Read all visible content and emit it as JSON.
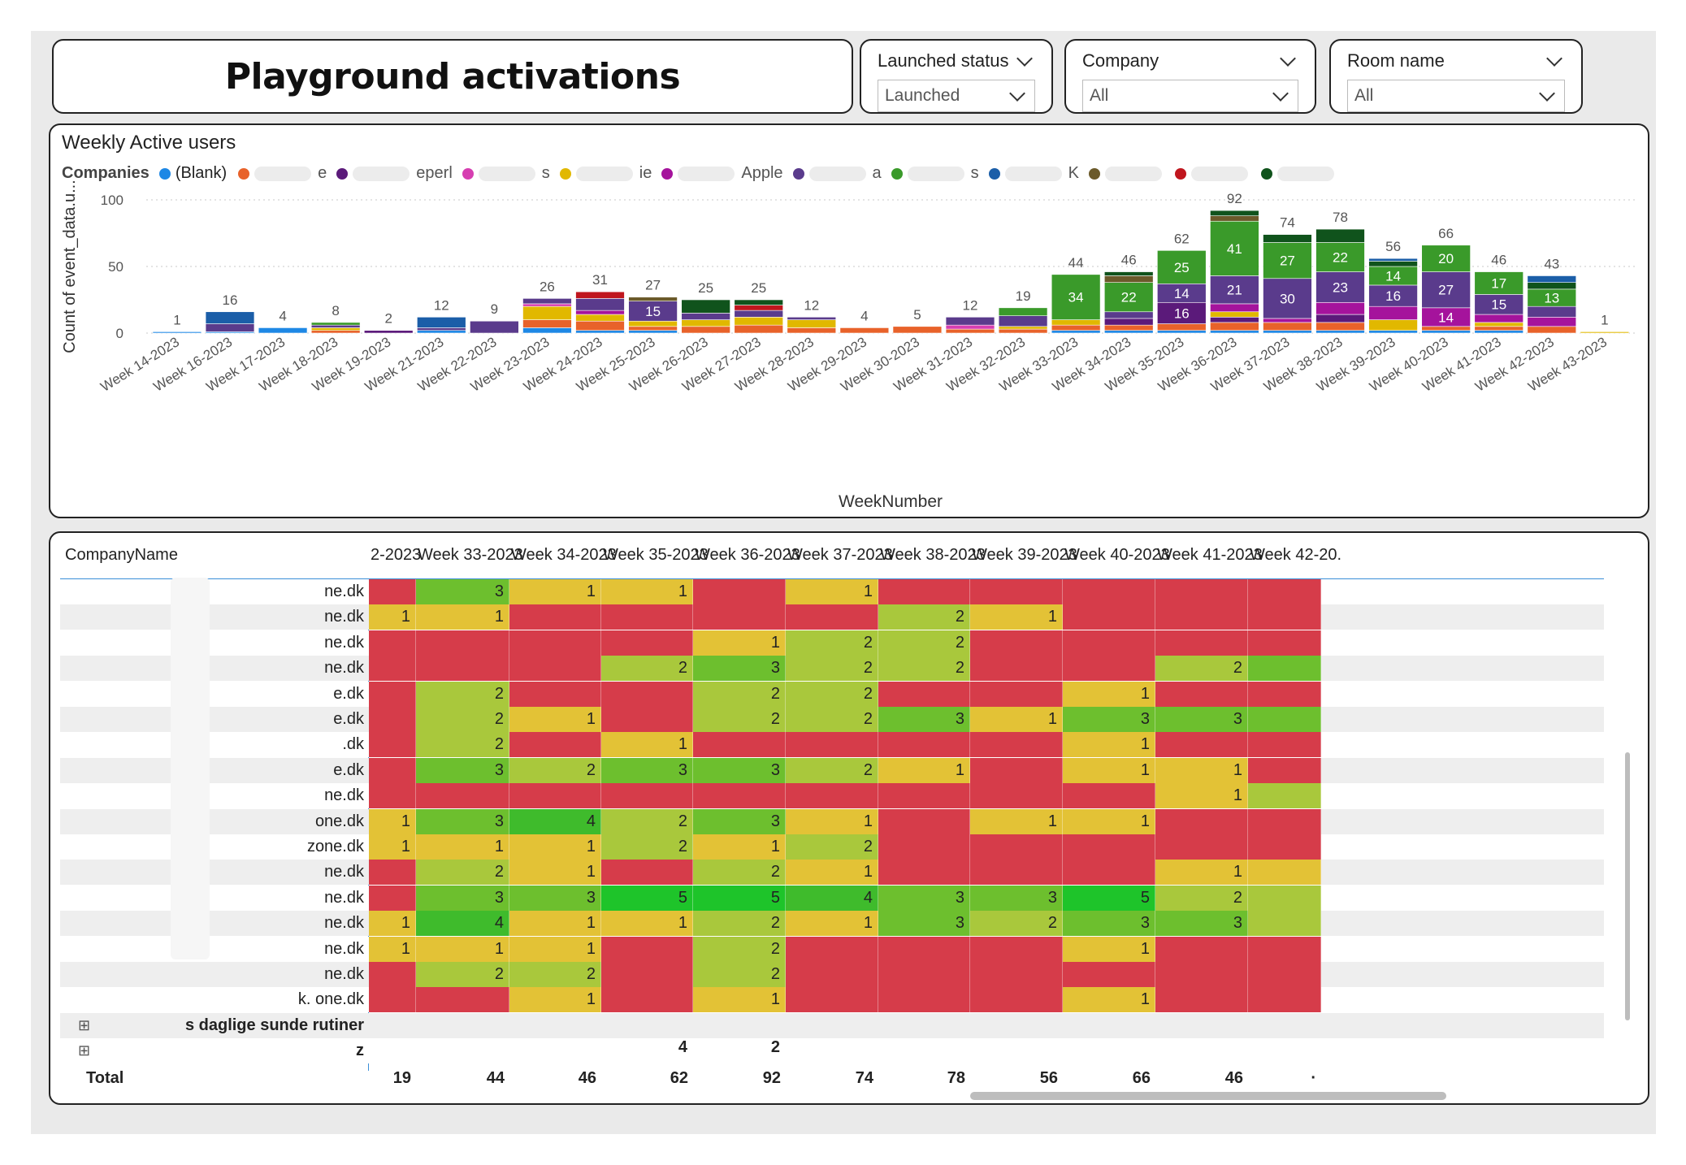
{
  "page": {
    "title": "Playground activations"
  },
  "slicers": [
    {
      "label": "Launched status",
      "value": "Launched"
    },
    {
      "label": "Company",
      "value": "All"
    },
    {
      "label": "Room name",
      "value": "All"
    }
  ],
  "chart": {
    "title": "Weekly Active users",
    "legend_title": "Companies",
    "legend_first": "(Blank)",
    "legend_fragments": [
      "e",
      "eperl",
      "s",
      "ie",
      "Apple",
      "a",
      "s",
      "K"
    ],
    "legend_colors": [
      "#1e88e5",
      "#e8622a",
      "#5b1a7a",
      "#d63eb1",
      "#e1b800",
      "#a5139c",
      "#5a3b8c",
      "#3a9a2a",
      "#1b5ea8",
      "#6b5a2a",
      "#c0161e",
      "#10531c"
    ]
  },
  "chart_data": {
    "type": "bar",
    "stacked": true,
    "title": "Weekly Active users",
    "xlabel": "WeekNumber",
    "ylabel": "Count of event_data.u...",
    "ylim": [
      0,
      100
    ],
    "yticks": [
      0,
      50,
      100
    ],
    "grid": true,
    "legend_position": "top",
    "categories": [
      "Week 14-2023",
      "Week 16-2023",
      "Week 17-2023",
      "Week 18-2023",
      "Week 19-2023",
      "Week 21-2023",
      "Week 22-2023",
      "Week 23-2023",
      "Week 24-2023",
      "Week 25-2023",
      "Week 26-2023",
      "Week 27-2023",
      "Week 28-2023",
      "Week 29-2023",
      "Week 30-2023",
      "Week 31-2023",
      "Week 32-2023",
      "Week 33-2023",
      "Week 34-2023",
      "Week 35-2023",
      "Week 36-2023",
      "Week 37-2023",
      "Week 38-2023",
      "Week 39-2023",
      "Week 40-2023",
      "Week 41-2023",
      "Week 42-2023",
      "Week 43-2023"
    ],
    "totals": [
      1,
      16,
      4,
      8,
      2,
      12,
      9,
      26,
      31,
      27,
      25,
      25,
      12,
      4,
      5,
      12,
      19,
      44,
      46,
      62,
      92,
      74,
      78,
      56,
      66,
      46,
      43,
      1
    ],
    "segments": [
      [
        {
          "c": "#1e88e5",
          "v": 1
        }
      ],
      [
        {
          "c": "#1e88e5",
          "v": 1
        },
        {
          "c": "#5a3b8c",
          "v": 6
        },
        {
          "c": "#1b5ea8",
          "v": 9
        }
      ],
      [
        {
          "c": "#1e88e5",
          "v": 4
        }
      ],
      [
        {
          "c": "#e8622a",
          "v": 2
        },
        {
          "c": "#e1b800",
          "v": 2
        },
        {
          "c": "#5a3b8c",
          "v": 2
        },
        {
          "c": "#3a9a2a",
          "v": 2
        }
      ],
      [
        {
          "c": "#5b1a7a",
          "v": 2
        }
      ],
      [
        {
          "c": "#1e88e5",
          "v": 2
        },
        {
          "c": "#5a3b8c",
          "v": 2
        },
        {
          "c": "#1b5ea8",
          "v": 8
        }
      ],
      [
        {
          "c": "#5a3b8c",
          "v": 9
        }
      ],
      [
        {
          "c": "#1e88e5",
          "v": 4
        },
        {
          "c": "#e8622a",
          "v": 6
        },
        {
          "c": "#e1b800",
          "v": 10
        },
        {
          "c": "#d63eb1",
          "v": 2
        },
        {
          "c": "#5a3b8c",
          "v": 4
        }
      ],
      [
        {
          "c": "#1e88e5",
          "v": 2
        },
        {
          "c": "#e8622a",
          "v": 7
        },
        {
          "c": "#e1b800",
          "v": 5
        },
        {
          "c": "#a5139c",
          "v": 3
        },
        {
          "c": "#5a3b8c",
          "v": 9
        },
        {
          "c": "#c0161e",
          "v": 5
        }
      ],
      [
        {
          "c": "#1e88e5",
          "v": 2
        },
        {
          "c": "#e8622a",
          "v": 3
        },
        {
          "c": "#e1b800",
          "v": 4
        },
        {
          "c": "#5a3b8c",
          "v": 15
        },
        {
          "c": "#6b5a2a",
          "v": 3
        }
      ],
      [
        {
          "c": "#e8622a",
          "v": 5
        },
        {
          "c": "#e1b800",
          "v": 5
        },
        {
          "c": "#5a3b8c",
          "v": 5
        },
        {
          "c": "#10531c",
          "v": 10
        }
      ],
      [
        {
          "c": "#e8622a",
          "v": 6
        },
        {
          "c": "#e1b800",
          "v": 6
        },
        {
          "c": "#5a3b8c",
          "v": 5
        },
        {
          "c": "#c0161e",
          "v": 4
        },
        {
          "c": "#10531c",
          "v": 4
        }
      ],
      [
        {
          "c": "#e8622a",
          "v": 4
        },
        {
          "c": "#e1b800",
          "v": 6
        },
        {
          "c": "#5a3b8c",
          "v": 2
        }
      ],
      [
        {
          "c": "#e8622a",
          "v": 4
        }
      ],
      [
        {
          "c": "#e8622a",
          "v": 5
        }
      ],
      [
        {
          "c": "#e8622a",
          "v": 3
        },
        {
          "c": "#d63eb1",
          "v": 3
        },
        {
          "c": "#5a3b8c",
          "v": 6
        }
      ],
      [
        {
          "c": "#e8622a",
          "v": 3
        },
        {
          "c": "#e1b800",
          "v": 2
        },
        {
          "c": "#5a3b8c",
          "v": 8
        },
        {
          "c": "#3a9a2a",
          "v": 6
        }
      ],
      [
        {
          "c": "#1e88e5",
          "v": 2
        },
        {
          "c": "#e8622a",
          "v": 4
        },
        {
          "c": "#e1b800",
          "v": 4
        },
        {
          "c": "#3a9a2a",
          "v": 34
        }
      ],
      [
        {
          "c": "#1e88e5",
          "v": 2
        },
        {
          "c": "#e8622a",
          "v": 4
        },
        {
          "c": "#5b1a7a",
          "v": 5
        },
        {
          "c": "#5a3b8c",
          "v": 5
        },
        {
          "c": "#3a9a2a",
          "v": 22
        },
        {
          "c": "#6b5a2a",
          "v": 5
        },
        {
          "c": "#10531c",
          "v": 3
        }
      ],
      [
        {
          "c": "#1e88e5",
          "v": 2
        },
        {
          "c": "#e8622a",
          "v": 5
        },
        {
          "c": "#5b1a7a",
          "v": 16
        },
        {
          "c": "#5a3b8c",
          "v": 14
        },
        {
          "c": "#3a9a2a",
          "v": 25
        }
      ],
      [
        {
          "c": "#1e88e5",
          "v": 2
        },
        {
          "c": "#e8622a",
          "v": 6
        },
        {
          "c": "#5b1a7a",
          "v": 4
        },
        {
          "c": "#e1b800",
          "v": 4
        },
        {
          "c": "#a5139c",
          "v": 6
        },
        {
          "c": "#5a3b8c",
          "v": 21
        },
        {
          "c": "#3a9a2a",
          "v": 41
        },
        {
          "c": "#6b5a2a",
          "v": 4
        },
        {
          "c": "#10531c",
          "v": 4
        }
      ],
      [
        {
          "c": "#1e88e5",
          "v": 2
        },
        {
          "c": "#e8622a",
          "v": 6
        },
        {
          "c": "#a5139c",
          "v": 3
        },
        {
          "c": "#5a3b8c",
          "v": 30
        },
        {
          "c": "#3a9a2a",
          "v": 27
        },
        {
          "c": "#10531c",
          "v": 6
        }
      ],
      [
        {
          "c": "#1e88e5",
          "v": 2
        },
        {
          "c": "#e8622a",
          "v": 6
        },
        {
          "c": "#5b1a7a",
          "v": 6
        },
        {
          "c": "#a5139c",
          "v": 9
        },
        {
          "c": "#5a3b8c",
          "v": 23
        },
        {
          "c": "#3a9a2a",
          "v": 22
        },
        {
          "c": "#10531c",
          "v": 10
        }
      ],
      [
        {
          "c": "#1e88e5",
          "v": 2
        },
        {
          "c": "#e1b800",
          "v": 8
        },
        {
          "c": "#a5139c",
          "v": 10
        },
        {
          "c": "#5a3b8c",
          "v": 16
        },
        {
          "c": "#3a9a2a",
          "v": 14
        },
        {
          "c": "#10531c",
          "v": 4
        },
        {
          "c": "#1b5ea8",
          "v": 2
        }
      ],
      [
        {
          "c": "#1e88e5",
          "v": 2
        },
        {
          "c": "#e8622a",
          "v": 3
        },
        {
          "c": "#a5139c",
          "v": 14
        },
        {
          "c": "#5a3b8c",
          "v": 27
        },
        {
          "c": "#3a9a2a",
          "v": 20
        }
      ],
      [
        {
          "c": "#1e88e5",
          "v": 2
        },
        {
          "c": "#e8622a",
          "v": 3
        },
        {
          "c": "#e1b800",
          "v": 3
        },
        {
          "c": "#a5139c",
          "v": 6
        },
        {
          "c": "#5a3b8c",
          "v": 15
        },
        {
          "c": "#3a9a2a",
          "v": 17
        }
      ],
      [
        {
          "c": "#e8622a",
          "v": 5
        },
        {
          "c": "#a5139c",
          "v": 7
        },
        {
          "c": "#5a3b8c",
          "v": 8
        },
        {
          "c": "#3a9a2a",
          "v": 13
        },
        {
          "c": "#10531c",
          "v": 5
        },
        {
          "c": "#1b5ea8",
          "v": 5
        }
      ],
      [
        {
          "c": "#e1b800",
          "v": 1
        }
      ]
    ],
    "segment_labels": [
      {
        "i": 9,
        "seg": 3,
        "label": "15"
      },
      {
        "i": 17,
        "seg": 3,
        "label": "34"
      },
      {
        "i": 18,
        "seg": 4,
        "label": "22"
      },
      {
        "i": 19,
        "seg": 2,
        "label": "16"
      },
      {
        "i": 19,
        "seg": 3,
        "label": "14"
      },
      {
        "i": 19,
        "seg": 4,
        "label": "25"
      },
      {
        "i": 20,
        "seg": 5,
        "label": "21"
      },
      {
        "i": 20,
        "seg": 6,
        "label": "41"
      },
      {
        "i": 21,
        "seg": 3,
        "label": "30"
      },
      {
        "i": 21,
        "seg": 4,
        "label": "27"
      },
      {
        "i": 22,
        "seg": 4,
        "label": "23"
      },
      {
        "i": 22,
        "seg": 5,
        "label": "22"
      },
      {
        "i": 23,
        "seg": 3,
        "label": "16"
      },
      {
        "i": 23,
        "seg": 4,
        "label": "14"
      },
      {
        "i": 24,
        "seg": 2,
        "label": "14"
      },
      {
        "i": 24,
        "seg": 3,
        "label": "27"
      },
      {
        "i": 24,
        "seg": 4,
        "label": "20"
      },
      {
        "i": 25,
        "seg": 4,
        "label": "15"
      },
      {
        "i": 25,
        "seg": 5,
        "label": "17"
      },
      {
        "i": 26,
        "seg": 3,
        "label": "13"
      }
    ]
  },
  "table": {
    "header_first": "CompanyName",
    "columns": [
      "2-2023",
      "Week 33-2023",
      "Week 34-2023",
      "Week 35-2023",
      "Week 36-2023",
      "Week 37-2023",
      "Week 38-2023",
      "Week 39-2023",
      "Week 40-2023",
      "Week 41-2023",
      "Week 42-20."
    ],
    "rows": [
      {
        "name": "ne.dk",
        "vals": [
          null,
          3,
          1,
          1,
          null,
          1,
          null,
          null,
          null,
          null,
          null
        ]
      },
      {
        "name": "ne.dk",
        "vals": [
          1,
          1,
          null,
          null,
          null,
          null,
          2,
          1,
          null,
          null,
          null
        ]
      },
      {
        "name": "ne.dk",
        "vals": [
          null,
          null,
          null,
          null,
          1,
          2,
          2,
          null,
          null,
          null,
          null
        ]
      },
      {
        "name": "ne.dk",
        "vals": [
          null,
          null,
          null,
          2,
          3,
          2,
          2,
          null,
          null,
          2,
          null
        ]
      },
      {
        "name": "e.dk",
        "vals": [
          null,
          2,
          null,
          null,
          2,
          2,
          null,
          null,
          1,
          null,
          null
        ]
      },
      {
        "name": "e.dk",
        "vals": [
          null,
          2,
          1,
          null,
          2,
          2,
          3,
          1,
          3,
          3,
          null
        ]
      },
      {
        "name": ".dk",
        "vals": [
          null,
          2,
          null,
          1,
          null,
          null,
          null,
          null,
          1,
          null,
          null
        ]
      },
      {
        "name": "e.dk",
        "vals": [
          null,
          3,
          2,
          3,
          3,
          2,
          1,
          null,
          1,
          1,
          null
        ]
      },
      {
        "name": "ne.dk",
        "vals": [
          null,
          null,
          null,
          null,
          null,
          null,
          null,
          null,
          null,
          1,
          null
        ]
      },
      {
        "name": "one.dk",
        "vals": [
          1,
          3,
          4,
          2,
          3,
          1,
          null,
          1,
          1,
          null,
          null
        ]
      },
      {
        "name": "zone.dk",
        "vals": [
          1,
          1,
          1,
          2,
          1,
          2,
          null,
          null,
          null,
          null,
          null
        ]
      },
      {
        "name": "ne.dk",
        "vals": [
          null,
          2,
          1,
          null,
          2,
          1,
          null,
          null,
          null,
          1,
          null
        ]
      },
      {
        "name": "ne.dk",
        "vals": [
          null,
          3,
          3,
          5,
          5,
          4,
          3,
          3,
          5,
          2,
          null
        ]
      },
      {
        "name": "ne.dk",
        "vals": [
          1,
          4,
          1,
          1,
          2,
          1,
          3,
          2,
          3,
          3,
          null
        ]
      },
      {
        "name": "ne.dk",
        "vals": [
          1,
          1,
          1,
          null,
          2,
          null,
          null,
          null,
          1,
          null,
          null
        ]
      },
      {
        "name": "ne.dk",
        "vals": [
          null,
          2,
          2,
          null,
          2,
          null,
          null,
          null,
          null,
          null,
          null
        ]
      },
      {
        "name": "k. one.dk",
        "vals": [
          null,
          null,
          1,
          null,
          1,
          null,
          null,
          null,
          1,
          null,
          null
        ]
      }
    ],
    "colors": {
      "zero": "#d63c4a",
      "one": "#e3c236",
      "two": "#a9c83c",
      "three": "#6dbf2e",
      "four": "#3fbb2c",
      "five": "#1ec42a",
      "last_col_tint": [
        "#d63c4a",
        "#d63c4a",
        "#d63c4a",
        "#6dbf2e",
        "#d63c4a",
        "#6dbf2e",
        "#d63c4a",
        "#d63c4a",
        "#a9c83c",
        "#d63c4a",
        "#d63c4a",
        "#e3c236",
        "#a9c83c",
        "#a9c83c",
        "#d63c4a",
        "#d63c4a",
        "#d63c4a"
      ]
    },
    "group_rows": [
      {
        "name": "s daglige sunde rutiner",
        "vals": []
      },
      {
        "name": "z",
        "vals": [
          null,
          null,
          null,
          4,
          2,
          null,
          null,
          null,
          null,
          null,
          null
        ]
      }
    ],
    "total_label": "Total",
    "totals": [
      19,
      44,
      46,
      62,
      92,
      74,
      78,
      56,
      66,
      46,
      "·"
    ]
  }
}
